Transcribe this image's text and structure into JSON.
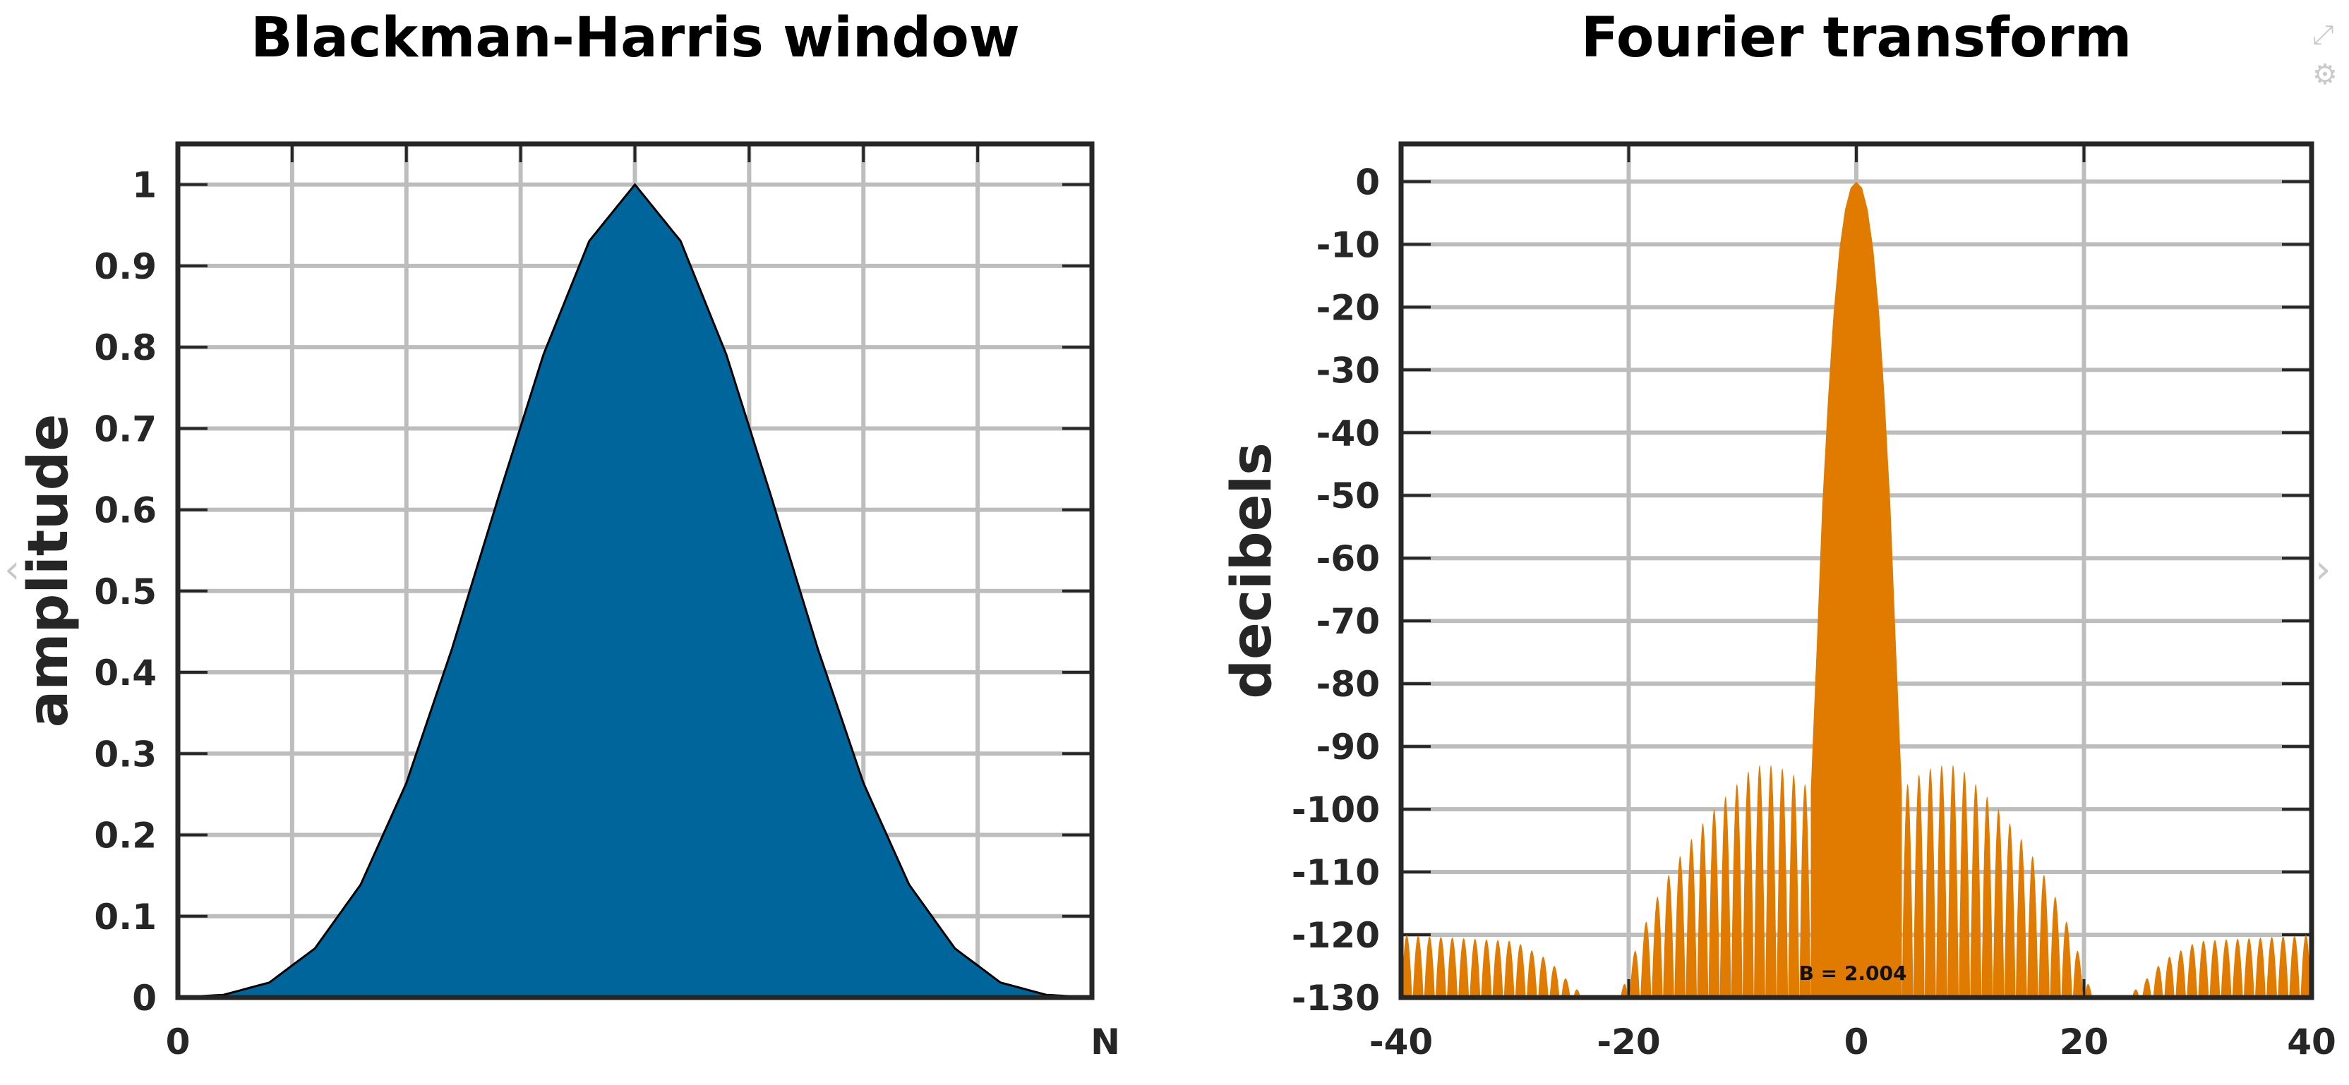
{
  "ui": {
    "icons": [
      "expand-icon",
      "settings-icon",
      "prev-arrow-icon",
      "next-arrow-icon"
    ]
  },
  "chart_data": [
    {
      "type": "area",
      "title": "Blackman-Harris window",
      "xlabel": "",
      "ylabel": "amplitude",
      "x_tick_labels": [
        "0",
        "N"
      ],
      "y_ticks": [
        0,
        0.1,
        0.2,
        0.3,
        0.4,
        0.5,
        0.6,
        0.7,
        0.8,
        0.9,
        1
      ],
      "y_tick_labels": [
        "0",
        "0.1",
        "0.2",
        "0.3",
        "0.4",
        "0.5",
        "0.6",
        "0.7",
        "0.8",
        "0.9",
        "1"
      ],
      "xlim": [
        0,
        1
      ],
      "ylim": [
        0,
        1.05
      ],
      "grid": true,
      "fill_color": "#00659a",
      "series": [
        {
          "x": [
            0,
            0.05,
            0.1,
            0.15,
            0.2,
            0.25,
            0.3,
            0.35,
            0.4,
            0.45,
            0.5,
            0.55,
            0.6,
            0.65,
            0.7,
            0.75,
            0.8,
            0.85,
            0.9,
            0.95,
            1
          ],
          "values": [
            0.0001,
            0.0033,
            0.0184,
            0.0605,
            0.1389,
            0.2639,
            0.4294,
            0.6129,
            0.791,
            0.9305,
            1.0,
            0.9305,
            0.791,
            0.6129,
            0.4294,
            0.2639,
            0.1389,
            0.0605,
            0.0184,
            0.0033,
            0.0001
          ]
        }
      ]
    },
    {
      "type": "area",
      "title": "Fourier transform",
      "xlabel": "",
      "ylabel": "decibels",
      "x_ticks": [
        -40,
        -20,
        0,
        20,
        40
      ],
      "x_tick_labels": [
        "-40",
        "-20",
        "0",
        "20",
        "40"
      ],
      "y_ticks": [
        0,
        -10,
        -20,
        -30,
        -40,
        -50,
        -60,
        -70,
        -80,
        -90,
        -100,
        -110,
        -120,
        -130
      ],
      "y_tick_labels": [
        "0",
        "-10",
        "-20",
        "-30",
        "-40",
        "-50",
        "-60",
        "-70",
        "-80",
        "-90",
        "-100",
        "-110",
        "-120",
        "-130"
      ],
      "xlim": [
        -40,
        40
      ],
      "ylim": [
        -130,
        6
      ],
      "grid": true,
      "fill_color": "#e07b00",
      "annotation": "B = 2.004",
      "sidelobe_envelope": {
        "x": [
          -40,
          -30,
          -27,
          -25,
          -23,
          -21,
          -19,
          -17,
          -15,
          -13,
          -11,
          -9,
          -7,
          -5,
          -4,
          4,
          5,
          7,
          9,
          11,
          13,
          15,
          17,
          19,
          21,
          23,
          25,
          27,
          30,
          40
        ],
        "values": [
          -120,
          -121,
          -124,
          -128,
          -131,
          -131,
          -120,
          -112,
          -106,
          -101,
          -97,
          -93,
          -93,
          -95,
          -97,
          -97,
          -95,
          -93,
          -93,
          -97,
          -101,
          -106,
          -112,
          -120,
          -131,
          -131,
          -128,
          -124,
          -121,
          -120
        ]
      },
      "series": [
        {
          "name": "",
          "x": [
            -4.0,
            -3.5,
            -3.0,
            -2.5,
            -2.0,
            -1.5,
            -1.0,
            -0.5,
            0,
            0.5,
            1.0,
            1.5,
            2.0,
            2.5,
            3.0,
            3.5,
            4.0
          ],
          "values": [
            -97,
            -75,
            -52,
            -35,
            -21,
            -11,
            -4.5,
            -1,
            0,
            -1,
            -4.5,
            -11,
            -21,
            -35,
            -52,
            -75,
            -97
          ]
        }
      ]
    }
  ]
}
